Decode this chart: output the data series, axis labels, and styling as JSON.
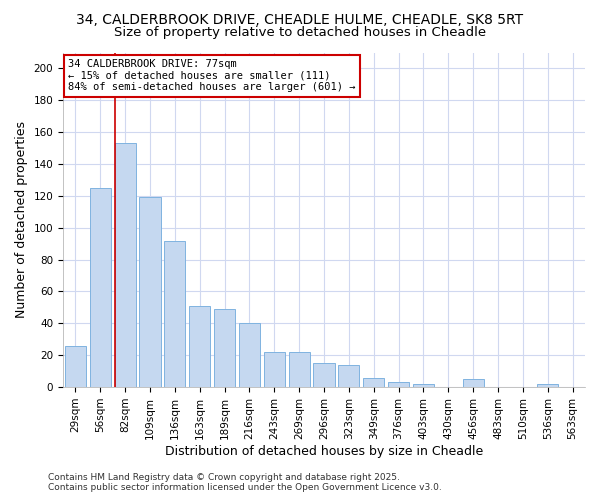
{
  "title_line1": "34, CALDERBROOK DRIVE, CHEADLE HULME, CHEADLE, SK8 5RT",
  "title_line2": "Size of property relative to detached houses in Cheadle",
  "xlabel": "Distribution of detached houses by size in Cheadle",
  "ylabel": "Number of detached properties",
  "categories": [
    "29sqm",
    "56sqm",
    "82sqm",
    "109sqm",
    "136sqm",
    "163sqm",
    "189sqm",
    "216sqm",
    "243sqm",
    "269sqm",
    "296sqm",
    "323sqm",
    "349sqm",
    "376sqm",
    "403sqm",
    "430sqm",
    "456sqm",
    "483sqm",
    "510sqm",
    "536sqm",
    "563sqm"
  ],
  "values": [
    26,
    125,
    153,
    119,
    92,
    51,
    49,
    40,
    22,
    22,
    15,
    14,
    6,
    3,
    2,
    0,
    5,
    0,
    0,
    2,
    0
  ],
  "bar_color": "#c5d8f0",
  "bar_edge_color": "#7fb3e0",
  "vline_x_idx": 2,
  "vline_color": "#cc0000",
  "annotation_text": "34 CALDERBROOK DRIVE: 77sqm\n← 15% of detached houses are smaller (111)\n84% of semi-detached houses are larger (601) →",
  "annotation_box_color": "#cc0000",
  "annotation_bg": "#ffffff",
  "ylim": [
    0,
    210
  ],
  "yticks": [
    0,
    20,
    40,
    60,
    80,
    100,
    120,
    140,
    160,
    180,
    200
  ],
  "footnote1": "Contains HM Land Registry data © Crown copyright and database right 2025.",
  "footnote2": "Contains public sector information licensed under the Open Government Licence v3.0.",
  "background_color": "#ffffff",
  "grid_color": "#d0d8f0",
  "title_fontsize": 10,
  "subtitle_fontsize": 9.5,
  "axis_label_fontsize": 9,
  "tick_fontsize": 7.5,
  "annotation_fontsize": 7.5,
  "footnote_fontsize": 6.5
}
